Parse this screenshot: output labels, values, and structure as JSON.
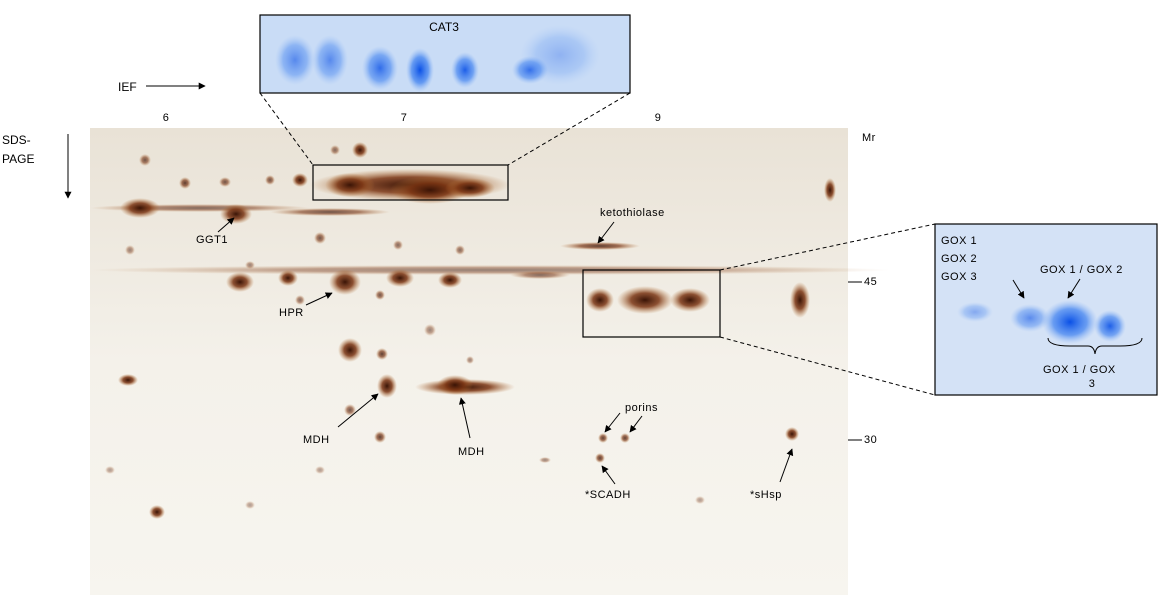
{
  "axes": {
    "horizontal_label": "IEF",
    "vertical_label": [
      "SDS-",
      "PAGE"
    ],
    "ph_labels": [
      "6",
      "7",
      "9"
    ],
    "mr_label": "Mr",
    "mr_markers": [
      "45",
      "30"
    ]
  },
  "gel_labels": [
    "GGT1",
    "HPR",
    "MDH",
    "MDH",
    "ketothiolase",
    "porins",
    "*SCADH",
    "*sHsp"
  ],
  "insets": {
    "cat": {
      "label": "CAT3"
    },
    "gox": {
      "labels_left": [
        "GOX 1",
        "GOX 2",
        "GOX 3"
      ],
      "label_top": "GOX 1 / GOX 2",
      "label_bottom": [
        "GOX 1 / GOX",
        "3"
      ]
    }
  }
}
